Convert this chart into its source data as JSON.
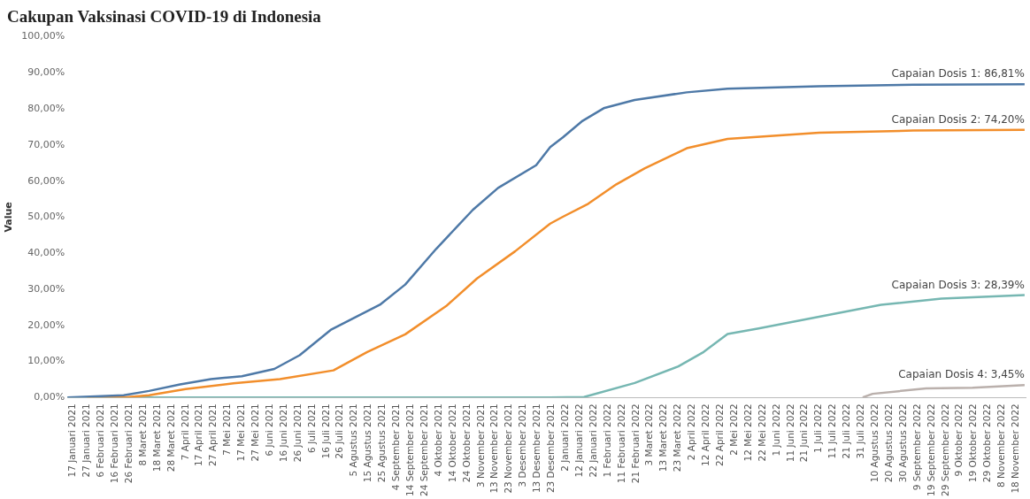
{
  "chart_data": {
    "type": "line",
    "title": "Cakupan Vaksinasi COVID-19 di Indonesia",
    "ylabel": "Value",
    "xlim": [
      "2021-01-13",
      "2022-11-25"
    ],
    "xticks": [
      {
        "value": "2021-01-17",
        "label": "17 Januari 2021"
      },
      {
        "value": "2021-01-27",
        "label": "27 Januari 2021"
      },
      {
        "value": "2021-02-06",
        "label": "6 Februari 2021"
      },
      {
        "value": "2021-02-16",
        "label": "16 Februari 2021"
      },
      {
        "value": "2021-02-26",
        "label": "26 Februari 2021"
      },
      {
        "value": "2021-03-08",
        "label": "8 Maret 2021"
      },
      {
        "value": "2021-03-18",
        "label": "18 Maret 2021"
      },
      {
        "value": "2021-03-28",
        "label": "28 Maret 2021"
      },
      {
        "value": "2021-04-07",
        "label": "7 April 2021"
      },
      {
        "value": "2021-04-17",
        "label": "17 April 2021"
      },
      {
        "value": "2021-04-27",
        "label": "27 April 2021"
      },
      {
        "value": "2021-05-07",
        "label": "7 Mei 2021"
      },
      {
        "value": "2021-05-17",
        "label": "17 Mei 2021"
      },
      {
        "value": "2021-05-27",
        "label": "27 Mei 2021"
      },
      {
        "value": "2021-06-06",
        "label": "6 Juni 2021"
      },
      {
        "value": "2021-06-16",
        "label": "16 Juni 2021"
      },
      {
        "value": "2021-06-26",
        "label": "26 Juni 2021"
      },
      {
        "value": "2021-07-06",
        "label": "6 Juli 2021"
      },
      {
        "value": "2021-07-16",
        "label": "16 Juli 2021"
      },
      {
        "value": "2021-07-26",
        "label": "26 Juli 2021"
      },
      {
        "value": "2021-08-05",
        "label": "5 Agustus 2021"
      },
      {
        "value": "2021-08-15",
        "label": "15 Agustus 2021"
      },
      {
        "value": "2021-08-25",
        "label": "25 Agustus 2021"
      },
      {
        "value": "2021-09-04",
        "label": "4 September 2021"
      },
      {
        "value": "2021-09-14",
        "label": "14 September 2021"
      },
      {
        "value": "2021-09-24",
        "label": "24 September 2021"
      },
      {
        "value": "2021-10-04",
        "label": "4 Oktober 2021"
      },
      {
        "value": "2021-10-14",
        "label": "14 Oktober 2021"
      },
      {
        "value": "2021-10-24",
        "label": "24 Oktober 2021"
      },
      {
        "value": "2021-11-03",
        "label": "3 November 2021"
      },
      {
        "value": "2021-11-13",
        "label": "13 November 2021"
      },
      {
        "value": "2021-11-23",
        "label": "23 November 2021"
      },
      {
        "value": "2021-12-03",
        "label": "3 Desember 2021"
      },
      {
        "value": "2021-12-13",
        "label": "13 Desember 2021"
      },
      {
        "value": "2021-12-23",
        "label": "23 Desember 2021"
      },
      {
        "value": "2022-01-02",
        "label": "2 Januari 2022"
      },
      {
        "value": "2022-01-12",
        "label": "12 Januari 2022"
      },
      {
        "value": "2022-01-22",
        "label": "22 Januari 2022"
      },
      {
        "value": "2022-02-01",
        "label": "1 Februari 2022"
      },
      {
        "value": "2022-02-11",
        "label": "11 Februari 2022"
      },
      {
        "value": "2022-02-21",
        "label": "21 Februari 2022"
      },
      {
        "value": "2022-03-03",
        "label": "3 Maret 2022"
      },
      {
        "value": "2022-03-13",
        "label": "13 Maret 2022"
      },
      {
        "value": "2022-03-23",
        "label": "23 Maret 2022"
      },
      {
        "value": "2022-04-02",
        "label": "2 April 2022"
      },
      {
        "value": "2022-04-12",
        "label": "12 April 2022"
      },
      {
        "value": "2022-04-22",
        "label": "22 April 2022"
      },
      {
        "value": "2022-05-02",
        "label": "2 Mei 2022"
      },
      {
        "value": "2022-05-12",
        "label": "12 Mei 2022"
      },
      {
        "value": "2022-05-22",
        "label": "22 Mei 2022"
      },
      {
        "value": "2022-06-01",
        "label": "1 Juni 2022"
      },
      {
        "value": "2022-06-11",
        "label": "11 Juni 2022"
      },
      {
        "value": "2022-06-21",
        "label": "21 Juni 2022"
      },
      {
        "value": "2022-07-01",
        "label": "1 Juli 2022"
      },
      {
        "value": "2022-07-11",
        "label": "11 Juli 2022"
      },
      {
        "value": "2022-07-21",
        "label": "21 Juli 2022"
      },
      {
        "value": "2022-07-31",
        "label": "31 Juli 2022"
      },
      {
        "value": "2022-08-10",
        "label": "10 Agustus 2022"
      },
      {
        "value": "2022-08-20",
        "label": "20 Agustus 2022"
      },
      {
        "value": "2022-08-30",
        "label": "30 Agustus 2022"
      },
      {
        "value": "2022-09-09",
        "label": "9 September 2022"
      },
      {
        "value": "2022-09-19",
        "label": "19 September 2022"
      },
      {
        "value": "2022-09-29",
        "label": "29 September 2022"
      },
      {
        "value": "2022-10-09",
        "label": "9 Oktober 2022"
      },
      {
        "value": "2022-10-19",
        "label": "19 Oktober 2022"
      },
      {
        "value": "2022-10-29",
        "label": "29 Oktober 2022"
      },
      {
        "value": "2022-11-08",
        "label": "8 November 2022"
      },
      {
        "value": "2022-11-18",
        "label": "18 November 2022"
      }
    ],
    "ylim": [
      0,
      100
    ],
    "yticks": [
      {
        "value": 0,
        "label": "0,00%"
      },
      {
        "value": 10,
        "label": "10,00%"
      },
      {
        "value": 20,
        "label": "20,00%"
      },
      {
        "value": 30,
        "label": "30,00%"
      },
      {
        "value": 40,
        "label": "40,00%"
      },
      {
        "value": 50,
        "label": "50,00%"
      },
      {
        "value": 60,
        "label": "60,00%"
      },
      {
        "value": 70,
        "label": "70,00%"
      },
      {
        "value": 80,
        "label": "80,00%"
      },
      {
        "value": 90,
        "label": "90,00%"
      },
      {
        "value": 100,
        "label": "100,00%"
      }
    ],
    "grid": false,
    "legend": false,
    "marker": "none",
    "line_style": "solid",
    "series": [
      {
        "color": "#4e79a7",
        "x": [
          "2021-01-13",
          "2021-02-22",
          "2021-03-12",
          "2021-04-03",
          "2021-04-25",
          "2021-05-17",
          "2021-06-09",
          "2021-06-27",
          "2021-07-19",
          "2021-08-23",
          "2021-09-10",
          "2021-10-02",
          "2021-10-28",
          "2021-11-15",
          "2021-12-12",
          "2021-12-22",
          "2021-12-31",
          "2022-01-14",
          "2022-01-29",
          "2022-02-20",
          "2022-03-29",
          "2022-04-27",
          "2022-07-01",
          "2022-09-06",
          "2022-11-24"
        ],
        "values": [
          0,
          0.6,
          1.8,
          3.6,
          5.1,
          5.9,
          7.9,
          11.7,
          18.7,
          25.7,
          31.3,
          41.2,
          52.0,
          58.1,
          64.4,
          69.4,
          72.1,
          76.7,
          80.2,
          82.5,
          84.6,
          85.6,
          86.3,
          86.7,
          86.81
        ]
      },
      {
        "color": "#f28e2b",
        "x": [
          "2021-01-27",
          "2021-02-22",
          "2021-03-12",
          "2021-04-07",
          "2021-05-11",
          "2021-06-13",
          "2021-07-21",
          "2021-08-14",
          "2021-09-10",
          "2021-10-09",
          "2021-10-31",
          "2021-11-27",
          "2021-12-22",
          "2021-12-31",
          "2022-01-18",
          "2022-02-07",
          "2022-02-27",
          "2022-03-29",
          "2022-04-27",
          "2022-07-01",
          "2022-09-06",
          "2022-11-24"
        ],
        "values": [
          0,
          0,
          0.6,
          2.3,
          3.9,
          5.1,
          7.5,
          12.6,
          17.5,
          25.3,
          33.0,
          40.5,
          48.2,
          50.1,
          53.7,
          59.1,
          63.5,
          69.1,
          71.7,
          73.4,
          74.0,
          74.2
        ]
      },
      {
        "color": "#76b7b2",
        "x": [
          "2021-01-13",
          "2021-12-22",
          "2022-01-15",
          "2022-02-20",
          "2022-03-23",
          "2022-04-10",
          "2022-04-27",
          "2022-05-19",
          "2022-07-01",
          "2022-08-14",
          "2022-09-26",
          "2022-11-24"
        ],
        "values": [
          0,
          0,
          0.1,
          4.0,
          8.6,
          12.6,
          17.6,
          19.1,
          22.4,
          25.7,
          27.4,
          28.39
        ]
      },
      {
        "color": "#bab0ac",
        "x": [
          "2022-08-01",
          "2022-08-08",
          "2022-09-15",
          "2022-10-18",
          "2022-11-24"
        ],
        "values": [
          0,
          1.0,
          2.5,
          2.7,
          3.45
        ]
      }
    ],
    "annotations": [
      {
        "text": "Capaian Dosis 1: 86,81%",
        "x": "2022-11-24",
        "y": 86.81
      },
      {
        "text": "Capaian Dosis 2: 74,20%",
        "x": "2022-11-24",
        "y": 74.2
      },
      {
        "text": "Capaian Dosis 3: 28,39%",
        "x": "2022-11-24",
        "y": 28.39
      },
      {
        "text": "Capaian Dosis 4: 3,45%",
        "x": "2022-11-24",
        "y": 3.45
      }
    ]
  }
}
